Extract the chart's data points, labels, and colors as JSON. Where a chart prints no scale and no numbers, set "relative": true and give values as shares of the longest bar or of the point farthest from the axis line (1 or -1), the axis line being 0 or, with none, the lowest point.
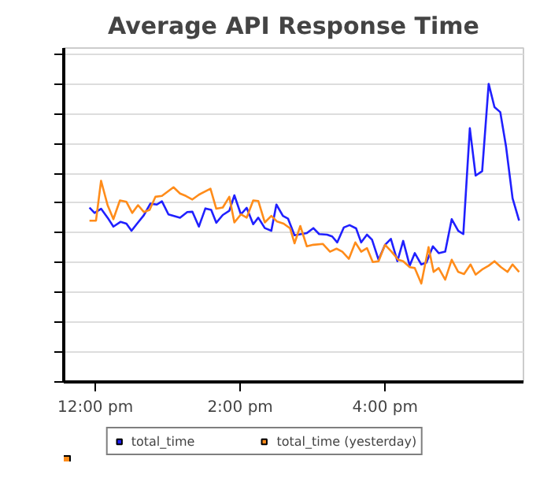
{
  "chart_data": {
    "type": "line",
    "title": "Average API Response Time",
    "relative": true,
    "xlim": [
      11.565,
      17.91
    ],
    "xticks": [
      {
        "value": 12,
        "label": "12:00 pm"
      },
      {
        "value": 14,
        "label": "2:00 pm"
      },
      {
        "value": 16,
        "label": "4:00 pm"
      }
    ],
    "tick_labels": "x",
    "grid": "y",
    "legend": "bottom",
    "marker": "none",
    "line_style": "solid",
    "series": [
      {
        "name": "total_time",
        "color": "#2020ff",
        "x": [
          11.92,
          11.99,
          12.08,
          12.17,
          12.25,
          12.35,
          12.43,
          12.5,
          12.59,
          12.67,
          12.76,
          12.85,
          12.92,
          13.01,
          13.17,
          13.27,
          13.34,
          13.43,
          13.52,
          13.6,
          13.67,
          13.76,
          13.85,
          13.92,
          14.01,
          14.09,
          14.18,
          14.25,
          14.34,
          14.43,
          14.5,
          14.59,
          14.66,
          14.75,
          14.92,
          15.01,
          15.09,
          15.2,
          15.27,
          15.34,
          15.43,
          15.51,
          15.6,
          15.67,
          15.75,
          15.82,
          15.91,
          16.0,
          16.08,
          16.17,
          16.25,
          16.34,
          16.41,
          16.5,
          16.57,
          16.66,
          16.74,
          16.83,
          16.92,
          17.01,
          17.08,
          17.17,
          17.25,
          17.34,
          17.43,
          17.51,
          17.59,
          17.67,
          17.76,
          17.85
        ],
        "values": [
          0.585,
          0.567,
          0.581,
          0.551,
          0.521,
          0.537,
          0.531,
          0.507,
          0.535,
          0.559,
          0.598,
          0.595,
          0.606,
          0.562,
          0.551,
          0.57,
          0.571,
          0.521,
          0.582,
          0.577,
          0.534,
          0.56,
          0.574,
          0.626,
          0.562,
          0.584,
          0.529,
          0.551,
          0.516,
          0.507,
          0.595,
          0.557,
          0.548,
          0.492,
          0.499,
          0.516,
          0.496,
          0.494,
          0.488,
          0.468,
          0.518,
          0.526,
          0.515,
          0.468,
          0.494,
          0.477,
          0.41,
          0.46,
          0.48,
          0.405,
          0.473,
          0.39,
          0.432,
          0.394,
          0.4,
          0.455,
          0.432,
          0.437,
          0.546,
          0.507,
          0.496,
          0.851,
          0.692,
          0.707,
          1.0,
          0.922,
          0.905,
          0.789,
          0.616,
          0.541
        ]
      },
      {
        "name": "total_time (yesterday)",
        "color": "#ff8c1a",
        "x": [
          11.92,
          12.01,
          12.08,
          12.17,
          12.25,
          12.34,
          12.43,
          12.51,
          12.59,
          12.67,
          12.75,
          12.83,
          12.92,
          13.08,
          13.17,
          13.25,
          13.34,
          13.43,
          13.59,
          13.67,
          13.76,
          13.85,
          13.92,
          14.01,
          14.09,
          14.18,
          14.25,
          14.34,
          14.43,
          14.51,
          14.6,
          14.69,
          14.75,
          14.83,
          14.92,
          15.01,
          15.14,
          15.24,
          15.33,
          15.41,
          15.5,
          15.59,
          15.67,
          15.75,
          15.83,
          15.91,
          16.0,
          16.09,
          16.18,
          16.25,
          16.34,
          16.41,
          16.5,
          16.6,
          16.67,
          16.74,
          16.83,
          16.92,
          17.01,
          17.09,
          17.18,
          17.25,
          17.35,
          17.43,
          17.51,
          17.6,
          17.69,
          17.76,
          17.85
        ],
        "values": [
          0.541,
          0.541,
          0.675,
          0.593,
          0.546,
          0.609,
          0.604,
          0.567,
          0.593,
          0.57,
          0.577,
          0.621,
          0.624,
          0.653,
          0.632,
          0.624,
          0.612,
          0.628,
          0.648,
          0.581,
          0.585,
          0.621,
          0.535,
          0.562,
          0.551,
          0.609,
          0.607,
          0.535,
          0.557,
          0.538,
          0.531,
          0.515,
          0.465,
          0.523,
          0.455,
          0.46,
          0.463,
          0.437,
          0.447,
          0.437,
          0.413,
          0.468,
          0.437,
          0.449,
          0.402,
          0.405,
          0.46,
          0.437,
          0.41,
          0.405,
          0.385,
          0.382,
          0.33,
          0.452,
          0.369,
          0.382,
          0.343,
          0.41,
          0.369,
          0.362,
          0.394,
          0.36,
          0.379,
          0.39,
          0.405,
          0.385,
          0.369,
          0.394,
          0.369
        ]
      }
    ]
  }
}
